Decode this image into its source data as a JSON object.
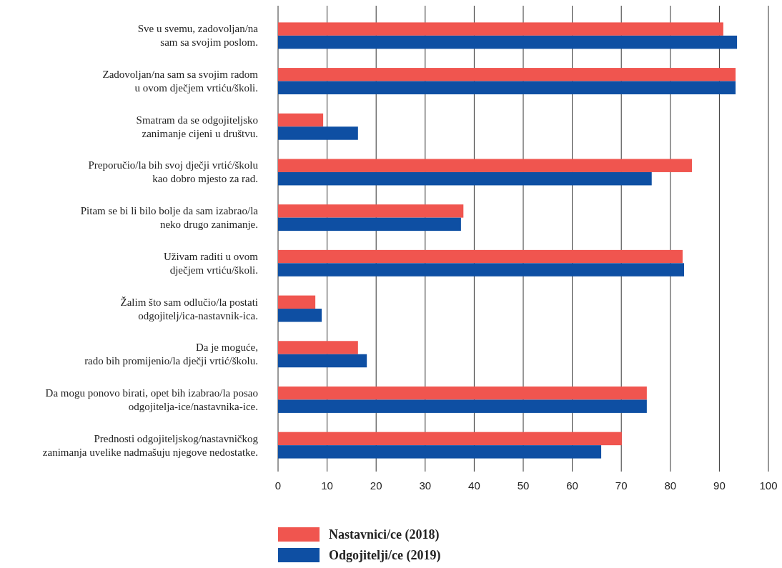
{
  "chart_data": {
    "type": "bar",
    "orientation": "horizontal",
    "categories": [
      "Sve u svemu, zadovoljan/na\nsam sa svojim poslom.",
      "Zadovoljan/na sam sa svojim radom\nu ovom dječjem vrtiću/školi.",
      "Smatram da se odgojiteljsko\nzanimanje cijeni u društvu.",
      "Preporučio/la bih svoj dječji vrtić/školu\nkao dobro mjesto za rad.",
      "Pitam se bi li bilo bolje da sam izabrao/la\nneko drugo zanimanje.",
      "Uživam raditi u ovom\ndječjem vrtiću/školi.",
      "Žalim što sam odlučio/la postati\nodgojitelj/ica-nastavnik-ica.",
      "Da je moguće,\nrado bih promijenio/la dječji vrtić/školu.",
      "Da mogu ponovo birati, opet bih izabrao/la posao\nodgojitelja-ice/nastavnika-ice.",
      "Prednosti odgojiteljskog/nastavničkog\nzanimanja uvelike nadmašuju njegove nedostatke."
    ],
    "series": [
      {
        "name": "Nastavnici/ce (2018)",
        "color": "#f0554f",
        "values": [
          90.8,
          93.3,
          9.2,
          84.4,
          37.8,
          82.5,
          7.6,
          16.3,
          75.2,
          70.1
        ]
      },
      {
        "name": "Odgojitelji/ce (2019)",
        "color": "#0e4fa3",
        "values": [
          93.6,
          93.3,
          16.3,
          76.2,
          37.3,
          82.8,
          8.9,
          18.1,
          75.2,
          65.9
        ]
      }
    ],
    "xlim": [
      0,
      100
    ],
    "xticks": [
      0,
      10,
      20,
      30,
      40,
      50,
      60,
      70,
      80,
      90,
      100
    ],
    "grid": "x",
    "legend": "bottom"
  }
}
